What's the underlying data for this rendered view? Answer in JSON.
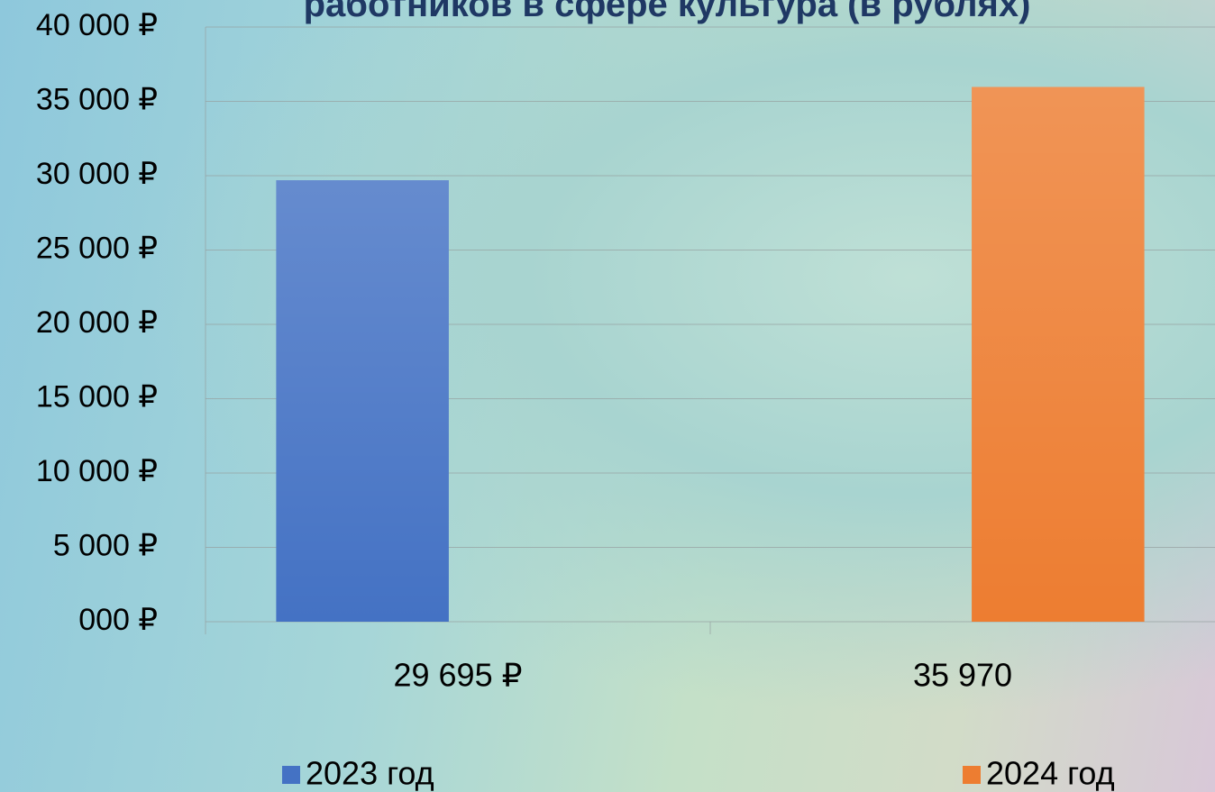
{
  "chart_data": {
    "type": "bar",
    "title": "работников в сфере культура (в рублях)",
    "categories": [
      "29 695 ₽",
      "35 970"
    ],
    "series": [
      {
        "name": "2023 год",
        "color": "#4472c4",
        "values": [
          29695,
          null
        ]
      },
      {
        "name": "2024 год",
        "color": "#ed7d31",
        "values": [
          null,
          35970
        ]
      }
    ],
    "ylim": [
      0,
      40000
    ],
    "yticks": [
      {
        "value": 0,
        "label": "000 ₽"
      },
      {
        "value": 5000,
        "label": "5 000 ₽"
      },
      {
        "value": 10000,
        "label": "10 000 ₽"
      },
      {
        "value": 15000,
        "label": "15 000 ₽"
      },
      {
        "value": 20000,
        "label": "20 000 ₽"
      },
      {
        "value": 25000,
        "label": "25 000 ₽"
      },
      {
        "value": 30000,
        "label": "30 000 ₽"
      },
      {
        "value": 35000,
        "label": "35 000 ₽"
      },
      {
        "value": 40000,
        "label": "40 000 ₽"
      }
    ],
    "grid": true,
    "legend": "bottom"
  }
}
